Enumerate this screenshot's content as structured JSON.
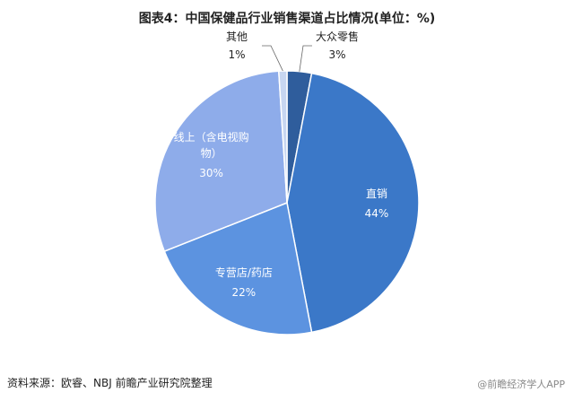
{
  "chart_data": {
    "type": "pie",
    "title": "图表4：中国保健品行业销售渠道占比情况(单位：%)",
    "categories": [
      "大众零售",
      "直销",
      "专营店/药店",
      "线上（含电视购物）",
      "其他"
    ],
    "values": [
      3,
      44,
      22,
      30,
      1
    ],
    "value_labels": [
      "3%",
      "44%",
      "22%",
      "30%",
      "1%"
    ],
    "colors": [
      "#2f5d9c",
      "#3b78c8",
      "#5c93e0",
      "#8eacea",
      "#c7d6f1"
    ]
  },
  "source": "资料来源：欧睿、NBJ 前瞻产业研究院整理",
  "footer": "@前瞻经济学人APP"
}
